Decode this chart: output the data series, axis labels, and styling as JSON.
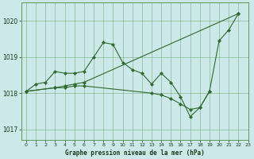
{
  "background_color": "#cce8e8",
  "grid_color": "#5a9a5a",
  "line_color": "#2d6a2d",
  "title": "Graphe pression niveau de la mer (hPa)",
  "xlim": [
    -0.5,
    23
  ],
  "ylim": [
    1016.7,
    1020.5
  ],
  "yticks": [
    1017,
    1018,
    1019,
    1020
  ],
  "xticks": [
    0,
    1,
    2,
    3,
    4,
    5,
    6,
    7,
    8,
    9,
    10,
    11,
    12,
    13,
    14,
    15,
    16,
    17,
    18,
    19,
    20,
    21,
    22,
    23
  ],
  "series1": [
    [
      0,
      1018.05
    ],
    [
      1,
      1018.25
    ],
    [
      2,
      1018.3
    ],
    [
      3,
      1018.6
    ],
    [
      4,
      1018.55
    ],
    [
      5,
      1018.55
    ],
    [
      6,
      1018.6
    ],
    [
      7,
      1019.0
    ],
    [
      8,
      1019.4
    ],
    [
      9,
      1019.35
    ],
    [
      10,
      1018.85
    ],
    [
      11,
      1018.65
    ],
    [
      12,
      1018.55
    ],
    [
      13,
      1018.25
    ],
    [
      14,
      1018.55
    ],
    [
      15,
      1018.3
    ],
    [
      16,
      1017.9
    ],
    [
      17,
      1017.35
    ],
    [
      18,
      1017.6
    ],
    [
      19,
      1018.05
    ],
    [
      20,
      1019.45
    ],
    [
      21,
      1019.75
    ],
    [
      22,
      1020.2
    ]
  ],
  "series2": [
    [
      0,
      1018.05
    ],
    [
      3,
      1018.15
    ],
    [
      4,
      1018.2
    ],
    [
      5,
      1018.25
    ],
    [
      6,
      1018.3
    ],
    [
      22,
      1020.2
    ]
  ],
  "series3": [
    [
      0,
      1018.05
    ],
    [
      3,
      1018.15
    ],
    [
      4,
      1018.15
    ],
    [
      5,
      1018.2
    ],
    [
      6,
      1018.2
    ],
    [
      13,
      1018.0
    ],
    [
      14,
      1017.95
    ],
    [
      15,
      1017.85
    ],
    [
      16,
      1017.7
    ],
    [
      17,
      1017.55
    ],
    [
      18,
      1017.6
    ],
    [
      19,
      1018.05
    ]
  ]
}
